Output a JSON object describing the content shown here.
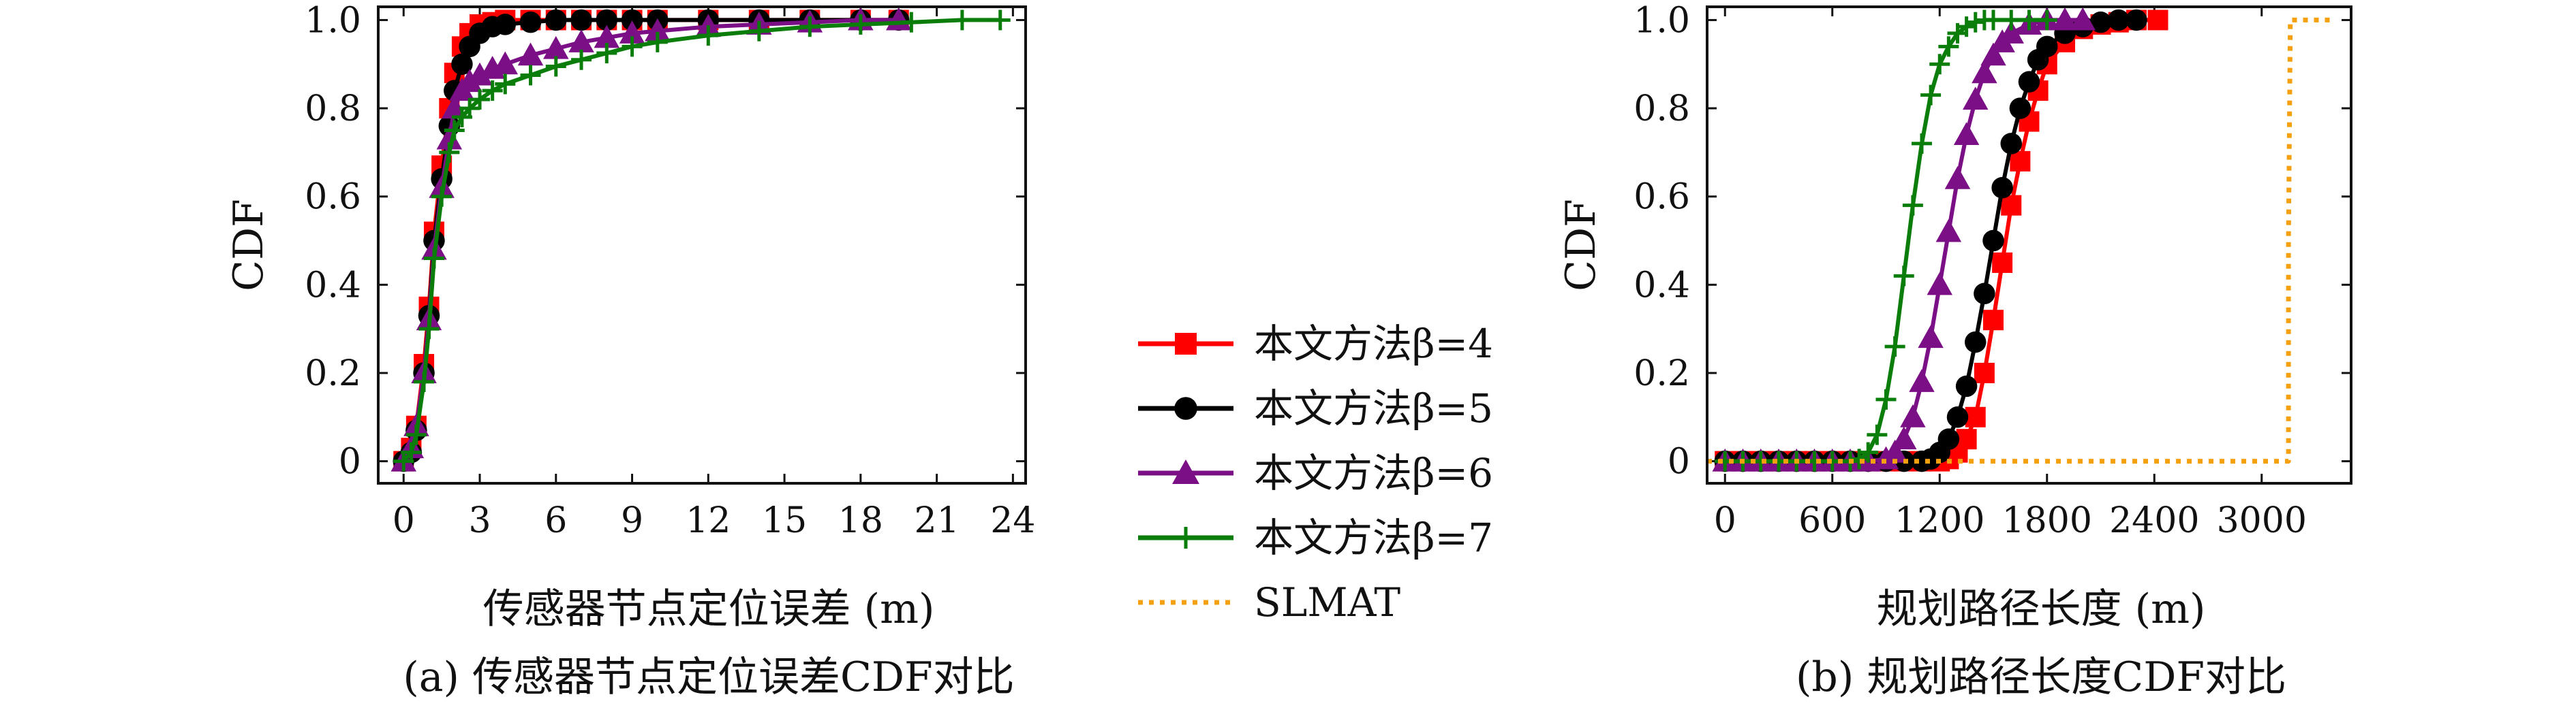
{
  "chart_data": [
    {
      "type": "line",
      "caption": "(a) 传感器节点定位误差CDF对比",
      "xlabel": "传感器节点定位误差 (m)",
      "ylabel": "CDF",
      "xlim": [
        -1,
        24.5
      ],
      "ylim": [
        -0.05,
        1.03
      ],
      "xticks": [
        "0",
        "3",
        "6",
        "9",
        "12",
        "15",
        "18",
        "21",
        "24"
      ],
      "yticks": [
        "0",
        "0.2",
        "0.4",
        "0.6",
        "0.8",
        "1.0"
      ],
      "grid": false,
      "series": [
        {
          "name": "本文方法β=4",
          "color": "#ff0000",
          "marker": "square",
          "x": [
            0,
            0.3,
            0.5,
            0.8,
            1.0,
            1.2,
            1.5,
            1.8,
            2.0,
            2.3,
            2.6,
            3.0,
            3.5,
            4,
            5,
            6,
            7,
            8,
            9,
            10,
            12,
            14,
            16,
            18,
            19.5
          ],
          "y": [
            0,
            0.03,
            0.08,
            0.22,
            0.35,
            0.52,
            0.67,
            0.8,
            0.88,
            0.94,
            0.97,
            0.99,
            0.995,
            1,
            1,
            1,
            1,
            1,
            1,
            1,
            1,
            1,
            1,
            1,
            1
          ]
        },
        {
          "name": "本文方法β=5",
          "color": "#000000",
          "marker": "circle",
          "x": [
            0,
            0.3,
            0.5,
            0.8,
            1.0,
            1.2,
            1.5,
            1.8,
            2.0,
            2.3,
            2.6,
            3.0,
            3.5,
            4,
            5,
            6,
            7,
            8,
            9,
            10,
            12,
            14,
            16,
            18,
            19.5
          ],
          "y": [
            0,
            0.02,
            0.07,
            0.2,
            0.33,
            0.5,
            0.64,
            0.76,
            0.84,
            0.9,
            0.94,
            0.97,
            0.985,
            0.99,
            0.995,
            1,
            1,
            1,
            1,
            1,
            1,
            1,
            1,
            1,
            1
          ]
        },
        {
          "name": "本文方法β=6",
          "color": "#7b0f86",
          "marker": "triangle",
          "x": [
            0,
            0.3,
            0.5,
            0.8,
            1.0,
            1.2,
            1.5,
            1.8,
            2.0,
            2.3,
            2.6,
            3.0,
            3.5,
            4,
            5,
            6,
            7,
            8,
            9,
            10,
            12,
            14,
            16,
            18,
            19.5
          ],
          "y": [
            0,
            0.03,
            0.08,
            0.2,
            0.32,
            0.48,
            0.62,
            0.73,
            0.8,
            0.84,
            0.86,
            0.875,
            0.89,
            0.9,
            0.92,
            0.935,
            0.95,
            0.96,
            0.97,
            0.975,
            0.985,
            0.99,
            0.995,
            1,
            1
          ]
        },
        {
          "name": "本文方法β=7",
          "color": "#0a7d0a",
          "marker": "plus",
          "x": [
            0,
            0.3,
            0.5,
            0.8,
            1.0,
            1.2,
            1.5,
            1.8,
            2.0,
            2.3,
            2.6,
            3.0,
            3.5,
            4,
            5,
            6,
            7,
            8,
            9,
            10,
            12,
            14,
            16,
            18,
            20,
            22,
            23.5
          ],
          "y": [
            0,
            0.02,
            0.06,
            0.18,
            0.3,
            0.46,
            0.6,
            0.7,
            0.75,
            0.78,
            0.8,
            0.82,
            0.84,
            0.855,
            0.875,
            0.895,
            0.91,
            0.925,
            0.94,
            0.95,
            0.965,
            0.975,
            0.985,
            0.99,
            0.995,
            1,
            1
          ]
        }
      ]
    },
    {
      "type": "line",
      "caption": "(b) 规划路径长度CDF对比",
      "xlabel": "规划路径长度 (m)",
      "ylabel": "CDF",
      "xlim": [
        -100,
        3500
      ],
      "ylim": [
        -0.05,
        1.03
      ],
      "xticks": [
        "0",
        "600",
        "1200",
        "1800",
        "2400",
        "3000"
      ],
      "yticks": [
        "0",
        "0.2",
        "0.4",
        "0.6",
        "0.8",
        "1.0"
      ],
      "grid": false,
      "series": [
        {
          "name": "本文方法β=4",
          "color": "#ff0000",
          "marker": "square",
          "x": [
            0,
            100,
            200,
            300,
            400,
            500,
            600,
            700,
            800,
            900,
            1000,
            1100,
            1200,
            1250,
            1300,
            1350,
            1400,
            1450,
            1500,
            1550,
            1600,
            1650,
            1700,
            1750,
            1800,
            1900,
            2000,
            2100,
            2200,
            2300,
            2420
          ],
          "y": [
            0,
            0,
            0,
            0,
            0,
            0,
            0,
            0,
            0,
            0,
            0,
            0,
            0,
            0.005,
            0.02,
            0.05,
            0.1,
            0.2,
            0.32,
            0.45,
            0.58,
            0.68,
            0.77,
            0.84,
            0.9,
            0.95,
            0.98,
            0.99,
            0.995,
            1,
            1
          ]
        },
        {
          "name": "本文方法β=5",
          "color": "#000000",
          "marker": "circle",
          "x": [
            0,
            100,
            200,
            300,
            400,
            500,
            600,
            700,
            800,
            900,
            1000,
            1100,
            1150,
            1200,
            1250,
            1300,
            1350,
            1400,
            1450,
            1500,
            1550,
            1600,
            1650,
            1700,
            1750,
            1800,
            1900,
            2000,
            2100,
            2200,
            2300
          ],
          "y": [
            0,
            0,
            0,
            0,
            0,
            0,
            0,
            0,
            0,
            0,
            0,
            0,
            0.005,
            0.02,
            0.05,
            0.1,
            0.17,
            0.27,
            0.38,
            0.5,
            0.62,
            0.72,
            0.8,
            0.86,
            0.91,
            0.94,
            0.97,
            0.985,
            0.995,
            1,
            1
          ]
        },
        {
          "name": "本文方法β=6",
          "color": "#7b0f86",
          "marker": "triangle",
          "x": [
            0,
            100,
            200,
            300,
            400,
            500,
            600,
            700,
            800,
            900,
            950,
            1000,
            1050,
            1100,
            1150,
            1200,
            1250,
            1300,
            1350,
            1400,
            1450,
            1500,
            1550,
            1600,
            1700,
            1800,
            1900,
            2000
          ],
          "y": [
            0,
            0,
            0,
            0,
            0,
            0,
            0,
            0,
            0,
            0.005,
            0.02,
            0.05,
            0.1,
            0.18,
            0.28,
            0.4,
            0.52,
            0.64,
            0.74,
            0.82,
            0.88,
            0.92,
            0.95,
            0.97,
            0.99,
            1,
            1,
            1
          ]
        },
        {
          "name": "本文方法β=7",
          "color": "#0a7d0a",
          "marker": "plus",
          "x": [
            0,
            100,
            200,
            300,
            400,
            500,
            600,
            700,
            750,
            800,
            850,
            900,
            950,
            1000,
            1050,
            1100,
            1150,
            1200,
            1250,
            1300,
            1350,
            1400,
            1450,
            1500,
            1600,
            1700,
            1800
          ],
          "y": [
            0,
            0,
            0,
            0,
            0,
            0,
            0,
            0,
            0.005,
            0.02,
            0.06,
            0.14,
            0.26,
            0.42,
            0.58,
            0.72,
            0.83,
            0.9,
            0.94,
            0.97,
            0.985,
            0.995,
            1,
            1,
            1,
            1,
            1
          ]
        },
        {
          "name": "SLMAT",
          "color": "#f5a10f",
          "marker": "none",
          "dashed": true,
          "x": [
            -100,
            3150,
            3150,
            3160,
            3400
          ],
          "y": [
            0,
            0,
            0.5,
            1,
            1
          ]
        }
      ]
    }
  ],
  "legend": {
    "placement": "center",
    "entries": [
      {
        "label": "本文方法β=4",
        "color": "#ff0000",
        "marker": "square"
      },
      {
        "label": "本文方法β=5",
        "color": "#000000",
        "marker": "circle"
      },
      {
        "label": "本文方法β=6",
        "color": "#7b0f86",
        "marker": "triangle"
      },
      {
        "label": "本文方法β=7",
        "color": "#0a7d0a",
        "marker": "plus"
      },
      {
        "label": "SLMAT",
        "color": "#f5a10f",
        "marker": "none",
        "dashed": true
      }
    ]
  }
}
